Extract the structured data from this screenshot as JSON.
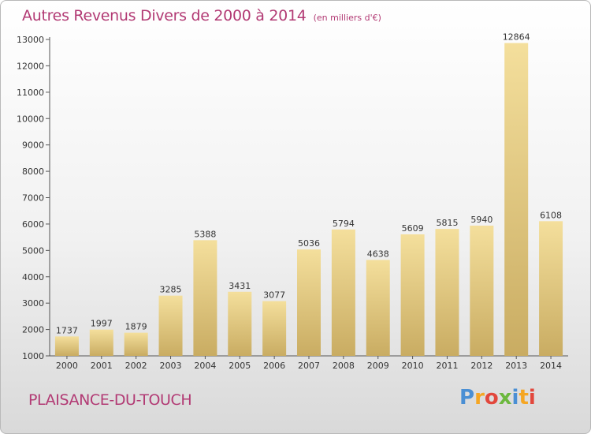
{
  "title": "Autres Revenus Divers de 2000 à 2014",
  "subtitle": "(en milliers d'€)",
  "location": "PLAISANCE-DU-TOUCH",
  "logo": {
    "letters": [
      "P",
      "r",
      "o",
      "x",
      "i",
      "t",
      "i"
    ],
    "colors": [
      "#4a8fd4",
      "#f5a623",
      "#e2473c",
      "#6cb83e",
      "#4a8fd4",
      "#f5a623",
      "#e2473c"
    ]
  },
  "colors": {
    "title": "#b23a74",
    "bar_light": "#f4df9c",
    "bar_dark": "#c9ac62"
  },
  "chart_data": {
    "type": "bar",
    "categories": [
      "2000",
      "2001",
      "2002",
      "2003",
      "2004",
      "2005",
      "2006",
      "2007",
      "2008",
      "2009",
      "2010",
      "2011",
      "2012",
      "2013",
      "2014"
    ],
    "values": [
      1737,
      1997,
      1879,
      3285,
      5388,
      3431,
      3077,
      5036,
      5794,
      4638,
      5609,
      5815,
      5940,
      12864,
      6108
    ],
    "title": "Autres Revenus Divers de 2000 à 2014",
    "subtitle": "(en milliers d'€)",
    "ylim": [
      1000,
      13000
    ],
    "yticks": [
      1000,
      2000,
      3000,
      4000,
      5000,
      6000,
      7000,
      8000,
      9000,
      10000,
      11000,
      12000,
      13000
    ],
    "grid": false,
    "legend": "none"
  }
}
